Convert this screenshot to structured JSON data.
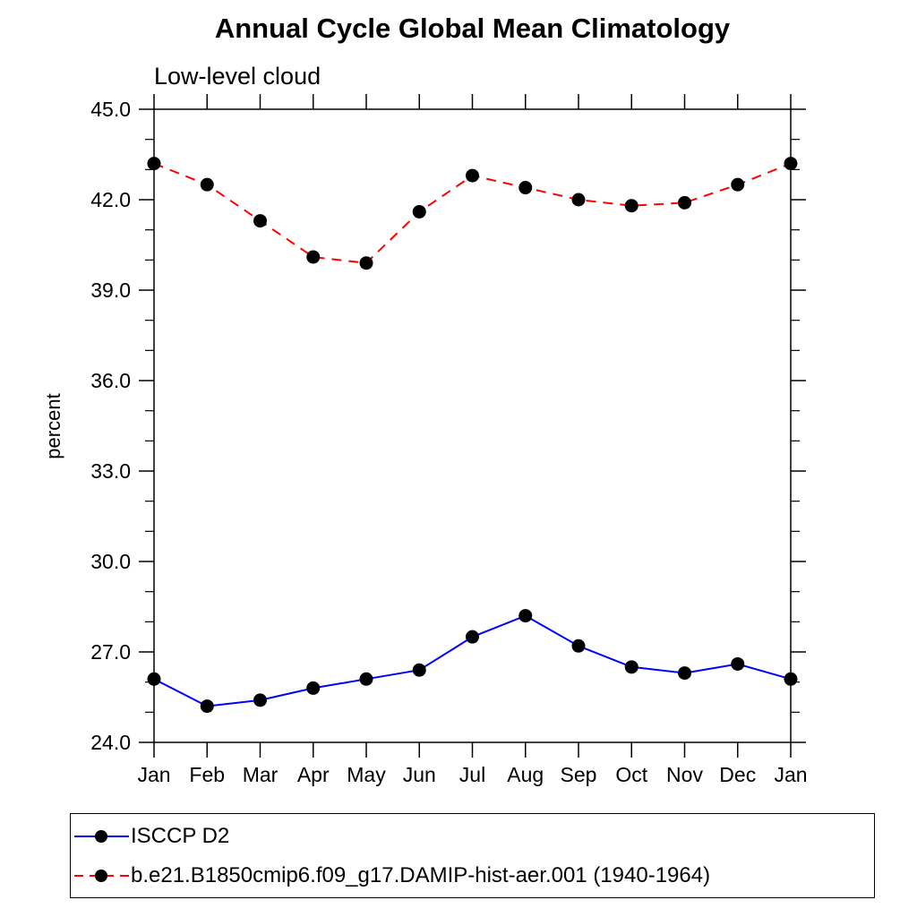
{
  "header": {
    "title": "Annual Cycle Global Mean Climatology",
    "subtitle": "Low-level cloud"
  },
  "chart_data": {
    "type": "line",
    "title": "Annual Cycle Global Mean Climatology",
    "subtitle": "Low-level cloud",
    "xlabel": "",
    "ylabel": "percent",
    "categories": [
      "Jan",
      "Feb",
      "Mar",
      "Apr",
      "May",
      "Jun",
      "Jul",
      "Aug",
      "Sep",
      "Oct",
      "Nov",
      "Dec",
      "Jan"
    ],
    "ylim": [
      24.0,
      45.0
    ],
    "y_major_ticks": [
      24.0,
      27.0,
      30.0,
      33.0,
      36.0,
      39.0,
      42.0,
      45.0
    ],
    "y_major_tick_labels": [
      "24.0",
      "27.0",
      "30.0",
      "33.0",
      "36.0",
      "39.0",
      "42.0",
      "45.0"
    ],
    "y_minor_interval": 1.0,
    "grid": false,
    "legend_position": "bottom-left-box",
    "frame_color": "#000000",
    "series": [
      {
        "name": "ISCCP D2",
        "color": "#0000ff",
        "line_style": "solid",
        "marker": "filled-circle",
        "marker_color": "#000000",
        "values": [
          26.1,
          25.2,
          25.4,
          25.8,
          26.1,
          26.4,
          27.5,
          28.2,
          27.2,
          26.5,
          26.3,
          26.6,
          26.1
        ]
      },
      {
        "name": "b.e21.B1850cmip6.f09_g17.DAMIP-hist-aer.001 (1940-1964)",
        "color": "#ff0000",
        "line_style": "dashed",
        "marker": "filled-circle",
        "marker_color": "#000000",
        "values": [
          43.2,
          42.5,
          41.3,
          40.1,
          39.9,
          41.6,
          42.8,
          42.4,
          42.0,
          41.8,
          41.9,
          42.5,
          43.2
        ]
      }
    ]
  }
}
